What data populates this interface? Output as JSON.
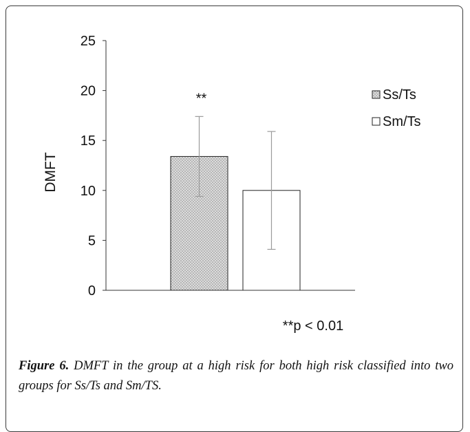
{
  "chart_data": {
    "type": "bar",
    "categories": [
      "Ss/Ts",
      "Sm/Ts"
    ],
    "values": [
      13.4,
      10.0
    ],
    "error": [
      4.0,
      5.9
    ],
    "ylabel": "DMFT",
    "ylim": [
      0,
      25
    ],
    "yticks": [
      "0",
      "5",
      "10",
      "15",
      "20",
      "25"
    ],
    "grid": false,
    "legend_position": "top-right",
    "legend": [
      "Ss/Ts",
      "Sm/Ts"
    ],
    "significance_marker": "**",
    "note": "**p < 0.01",
    "colors": {
      "bar_fill": "#d8d8d8",
      "pattern_dot": "#7a7a7a",
      "errorbar": "#9a9a9a",
      "axis": "#333333"
    }
  },
  "caption": {
    "label": "Figure 6.",
    "text": " DMFT in the group at a high risk for both high risk classified into two groups for Ss/Ts and Sm/TS."
  }
}
